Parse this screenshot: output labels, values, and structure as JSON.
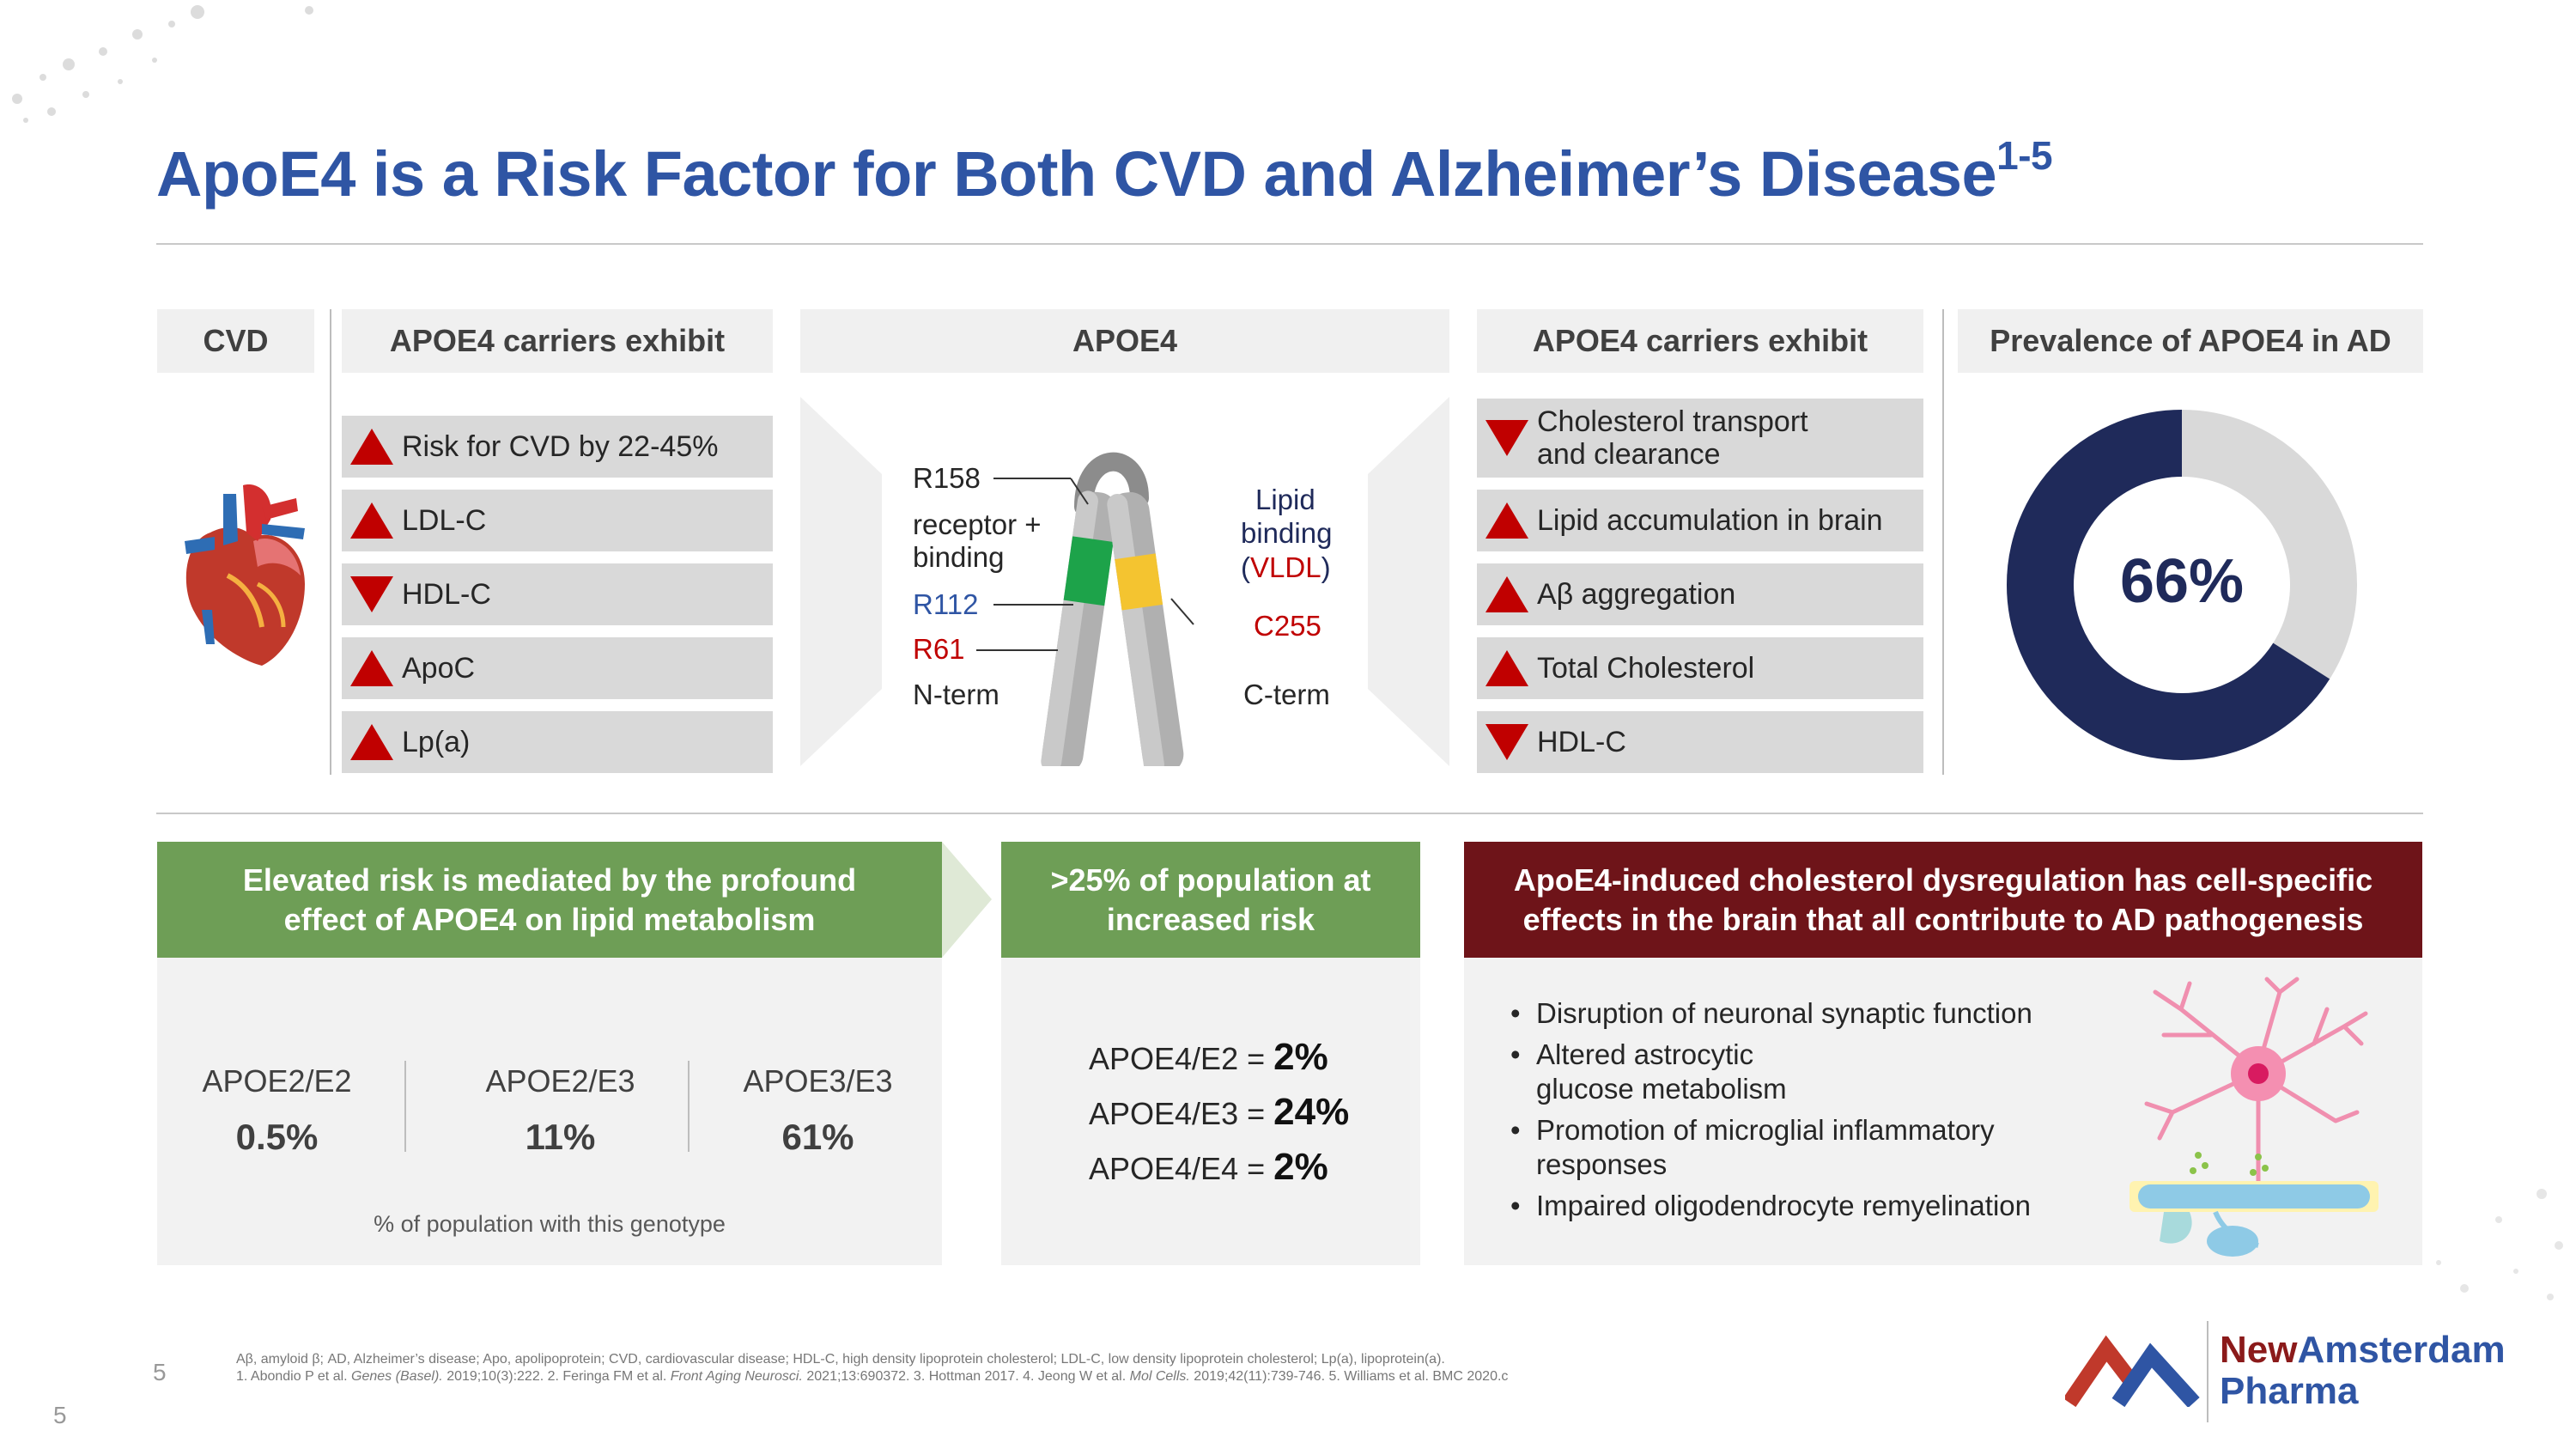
{
  "slide": {
    "title": "ApoE4 is a Risk Factor for Both CVD and Alzheimer’s Disease",
    "title_superscript": "1-5"
  },
  "cvd": {
    "header": "CVD",
    "carriers_header": "APOE4 carriers exhibit",
    "items": [
      {
        "label": "Risk for CVD by 22-45%",
        "direction": "up"
      },
      {
        "label": "LDL-C",
        "direction": "up"
      },
      {
        "label": "HDL-C",
        "direction": "down"
      },
      {
        "label": "ApoC",
        "direction": "up"
      },
      {
        "label": "Lp(a)",
        "direction": "up"
      }
    ]
  },
  "apoe4": {
    "header": "APOE4",
    "labels": {
      "r158": "R158",
      "receptor_binding_1": "receptor +",
      "receptor_binding_2": "binding",
      "r112": "R112",
      "r61": "R61",
      "nterm": "N-term",
      "lipid_1": "Lipid",
      "lipid_2": "binding",
      "lipid_3": "(VLDL)",
      "c255": "C255",
      "cterm": "C-term"
    }
  },
  "ad": {
    "carriers_header": "APOE4 carriers exhibit",
    "items": [
      {
        "label": "Cholesterol transport\nand clearance",
        "direction": "down"
      },
      {
        "label": "Lipid accumulation in brain",
        "direction": "up"
      },
      {
        "label": "Aβ aggregation",
        "direction": "up"
      },
      {
        "label": "Total Cholesterol",
        "direction": "up"
      },
      {
        "label": "HDL-C",
        "direction": "down"
      }
    ],
    "prevalence_header": "Prevalence of APOE4 in AD",
    "prevalence_value": "66%",
    "prevalence_fraction": 0.66
  },
  "lipid_panel": {
    "header": "Elevated risk is mediated by the profound effect of APOE4 on lipid metabolism",
    "genotypes": [
      {
        "name": "APOE2/E2",
        "value": "0.5%"
      },
      {
        "name": "APOE2/E3",
        "value": "11%"
      },
      {
        "name": "APOE3/E3",
        "value": "61%"
      }
    ],
    "note": "% of population with this genotype"
  },
  "risk_panel": {
    "header": ">25% of population at increased risk",
    "rows": [
      {
        "label": "APOE4/E2 = ",
        "value": "2%"
      },
      {
        "label": "APOE4/E3 = ",
        "value": "24%"
      },
      {
        "label": "APOE4/E4 = ",
        "value": "2%"
      }
    ]
  },
  "brain_panel": {
    "header": "ApoE4-induced cholesterol dysregulation has cell-specific effects in the brain that all contribute to AD pathogenesis",
    "bullets": [
      "Disruption of neuronal synaptic function",
      "Altered astrocytic\nglucose metabolism",
      "Promotion of microglial inflammatory\nresponses",
      "Impaired oligodendrocyte remyelination"
    ]
  },
  "footer": {
    "abbrev": "Aβ, amyloid β; AD, Alzheimer’s disease; Apo, apolipoprotein; CVD, cardiovascular disease; HDL-C, high density lipoprotein cholesterol; LDL-C, low density lipoprotein cholesterol; Lp(a), lipoprotein(a).",
    "refs": "1. Abondio P et al. Genes (Basel). 2019;10(3):222. 2. Feringa FM et al. Front Aging Neurosci. 2021;13:690372. 3. Hottman 2017. 4. Jeong W et al. Mol Cells. 2019;42(11):739-746. 5. Williams et al. BMC 2020.c",
    "page_inner": "5",
    "page_outer": "5",
    "logo_line1_a": "New",
    "logo_line1_b": "Amsterdam",
    "logo_line2": "Pharma"
  },
  "colors": {
    "title": "#2F55A4",
    "arrow": "#C00000",
    "green": "#6E9E56",
    "maroon": "#6E1419",
    "donut_fill": "#1F2A5A",
    "donut_rest": "#d9d9d9"
  }
}
